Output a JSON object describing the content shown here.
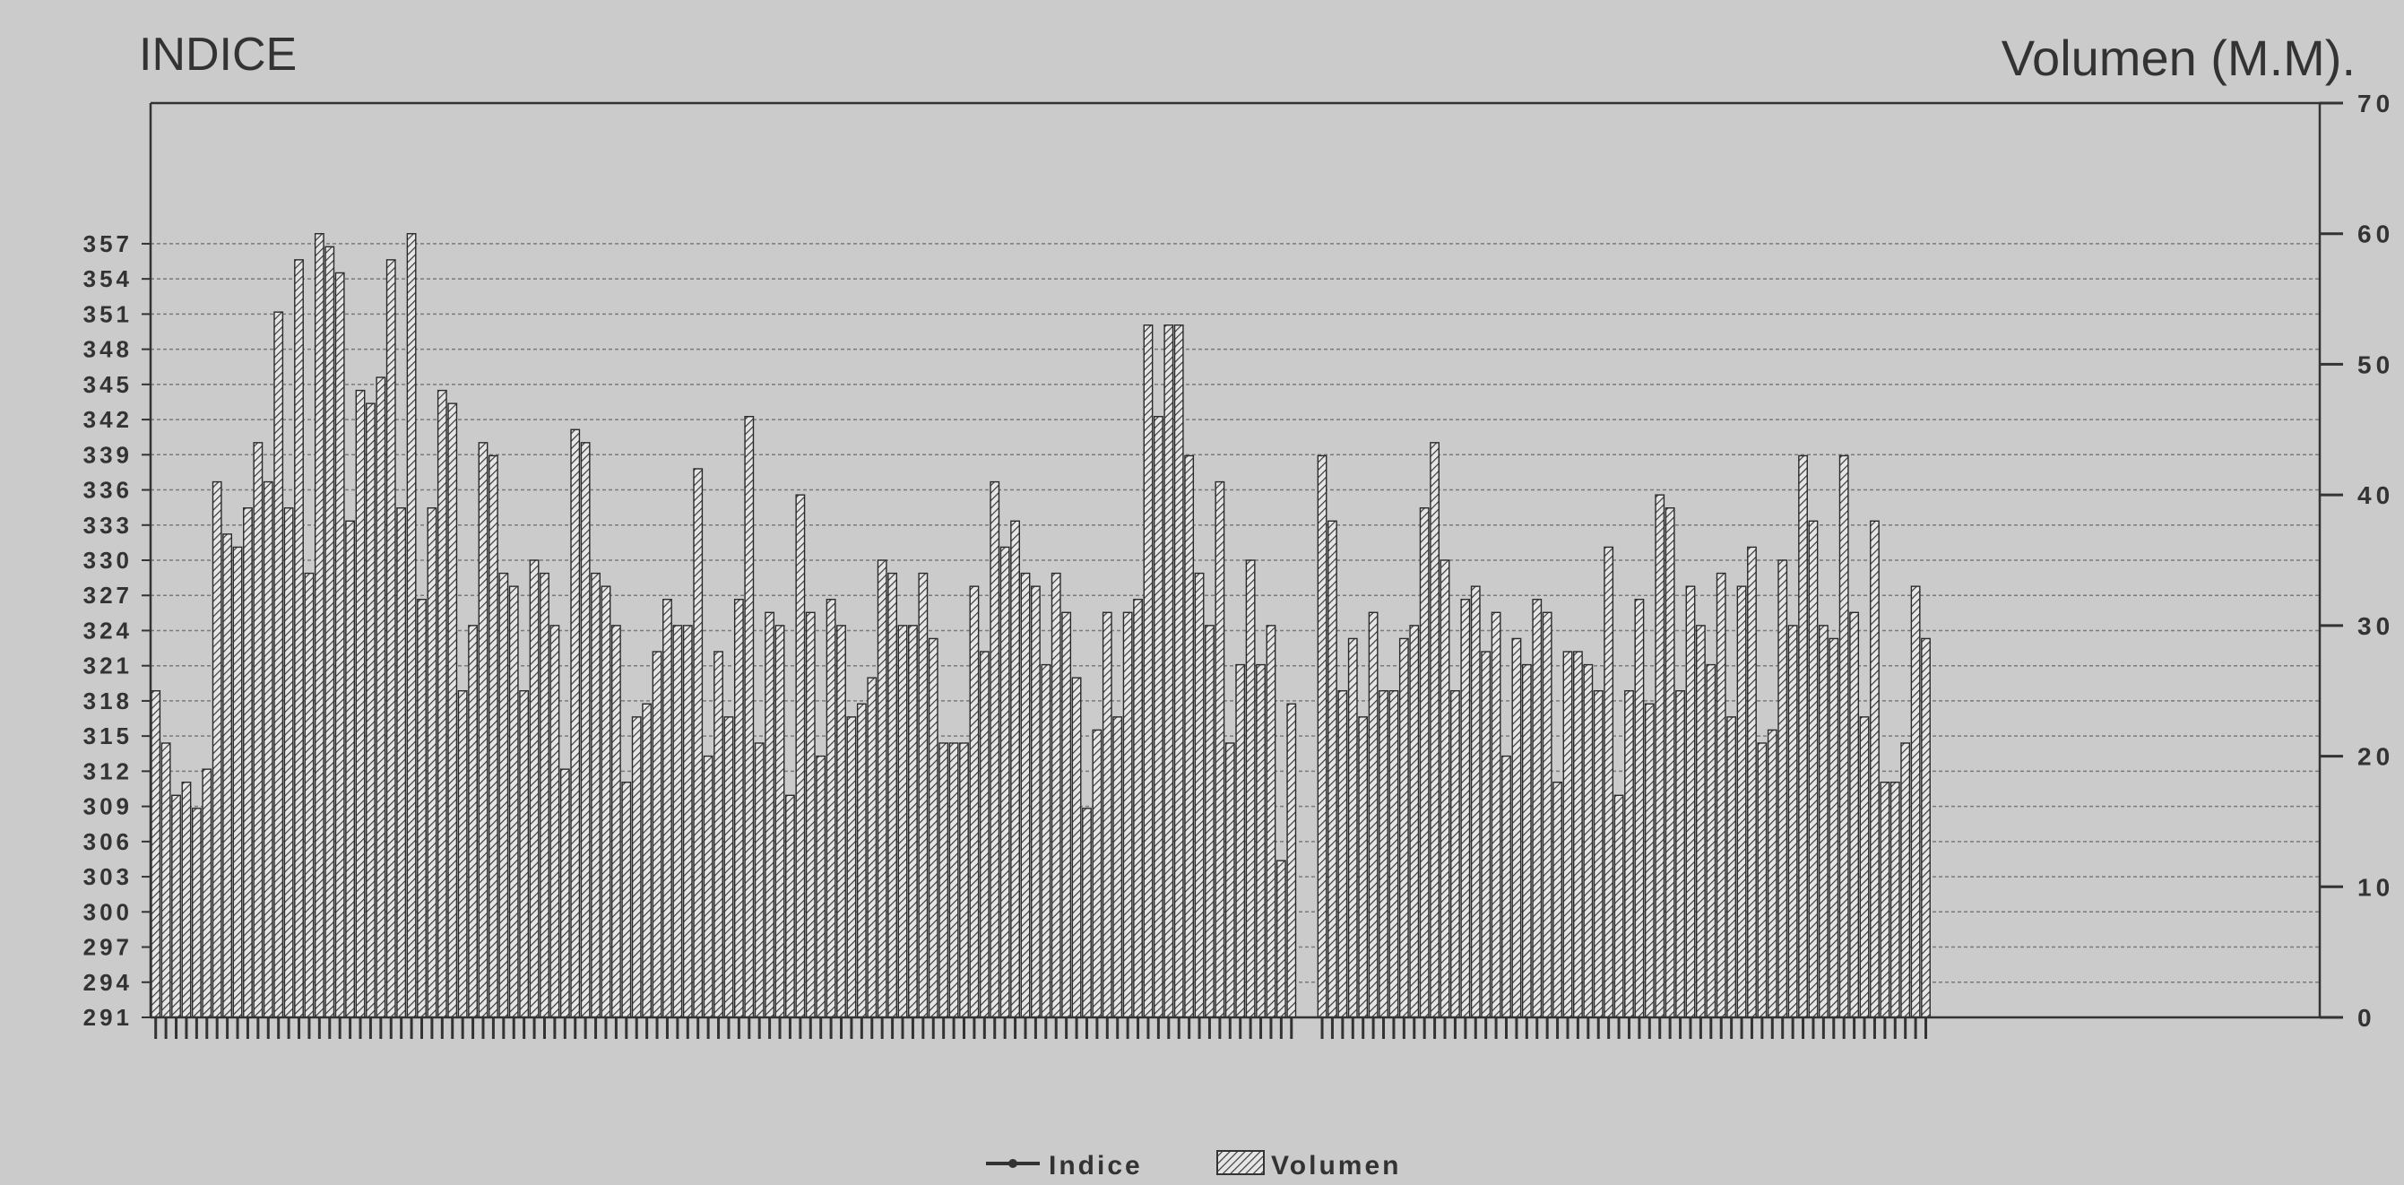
{
  "chart_data": {
    "type": "bar+line",
    "title_left": "INDICE",
    "title_right": "Volumen (M.M).",
    "left_axis": {
      "ylim": [
        291,
        369
      ],
      "ticks": [
        291,
        294,
        297,
        300,
        303,
        306,
        309,
        312,
        315,
        318,
        321,
        324,
        327,
        330,
        333,
        336,
        339,
        342,
        345,
        348,
        351,
        354,
        357
      ],
      "tick_labels": [
        "291",
        "294",
        "297",
        "300",
        "303",
        "306",
        "309",
        "312",
        "315",
        "318",
        "321",
        "324",
        "327",
        "330",
        "333",
        "336",
        "339",
        "342",
        "345",
        "348",
        "351",
        "354",
        "357"
      ]
    },
    "right_axis": {
      "ylim": [
        0,
        70
      ],
      "ticks": [
        0,
        10,
        20,
        30,
        40,
        50,
        60,
        70
      ],
      "tick_labels": [
        "0",
        "10",
        "20",
        "30",
        "40",
        "50",
        "60",
        "70"
      ]
    },
    "grid": true,
    "legend": [
      {
        "label": "Indice",
        "marker": "line"
      },
      {
        "label": "Volumen",
        "marker": "hatched-bar"
      }
    ],
    "legend_position": "bottom-center",
    "bar_slots": 212,
    "gaps_after": [
      111,
      190
    ],
    "volumen": [
      25,
      21,
      17,
      18,
      16,
      19,
      41,
      37,
      36,
      39,
      44,
      41,
      54,
      39,
      58,
      34,
      60,
      59,
      57,
      38,
      48,
      47,
      49,
      58,
      39,
      60,
      32,
      39,
      48,
      47,
      25,
      30,
      44,
      43,
      34,
      33,
      25,
      35,
      34,
      30,
      19,
      45,
      44,
      34,
      33,
      30,
      18,
      23,
      24,
      28,
      32,
      30,
      30,
      42,
      20,
      28,
      23,
      32,
      46,
      21,
      31,
      30,
      17,
      40,
      31,
      20,
      32,
      30,
      23,
      24,
      26,
      35,
      34,
      30,
      30,
      34,
      29,
      21,
      21,
      21,
      33,
      28,
      41,
      36,
      38,
      34,
      33,
      27,
      34,
      31,
      26,
      16,
      22,
      31,
      23,
      31,
      32,
      53,
      46,
      53,
      53,
      43,
      34,
      30,
      41,
      21,
      27,
      35,
      27,
      30,
      12,
      24,
      43,
      38,
      25,
      29,
      23,
      31,
      25,
      25,
      29,
      30,
      39,
      44,
      35,
      25,
      32,
      33,
      28,
      31,
      20,
      29,
      27,
      32,
      31,
      18,
      28,
      28,
      27,
      25,
      36,
      17,
      25,
      32,
      24,
      40,
      39,
      25,
      33,
      30,
      27,
      34,
      23,
      33,
      36,
      21,
      22,
      35,
      30,
      43,
      38,
      30,
      29,
      43,
      31,
      23,
      38,
      18,
      18,
      21,
      33,
      29
    ]
  },
  "legend": {
    "indice_label": "Indice",
    "volumen_label": "Volumen"
  }
}
